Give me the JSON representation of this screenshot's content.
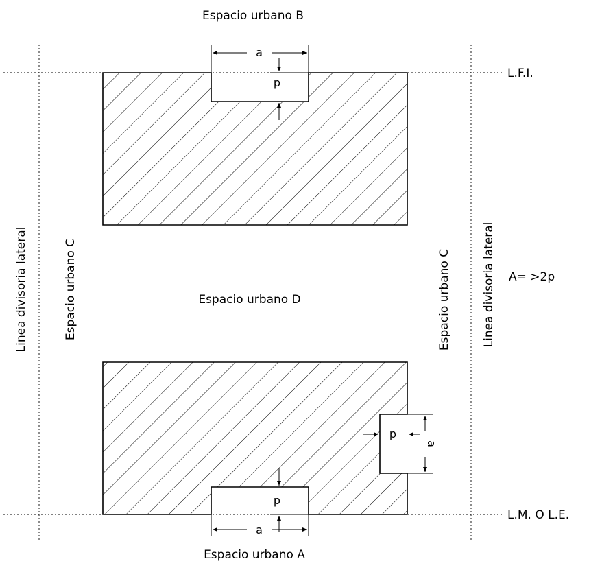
{
  "labels": {
    "top": "Espacio urbano  B",
    "bottom": "Espacio urbano  A",
    "center": "Espacio urbano D",
    "left_c": "Espacio urbano  C",
    "right_c": "Espacio urbano  C",
    "left_divisoria": "Linea divisoria lateral",
    "right_divisoria": "Linea divisoria lateral",
    "lfi": "L.F.I.",
    "lm": "L.M. O L.E.",
    "formula": "A= >2p"
  },
  "dims": {
    "a_top": "a",
    "p_top": "p",
    "a_bottom": "a",
    "p_bottom": "p",
    "a_right": "a",
    "p_right": "p"
  }
}
